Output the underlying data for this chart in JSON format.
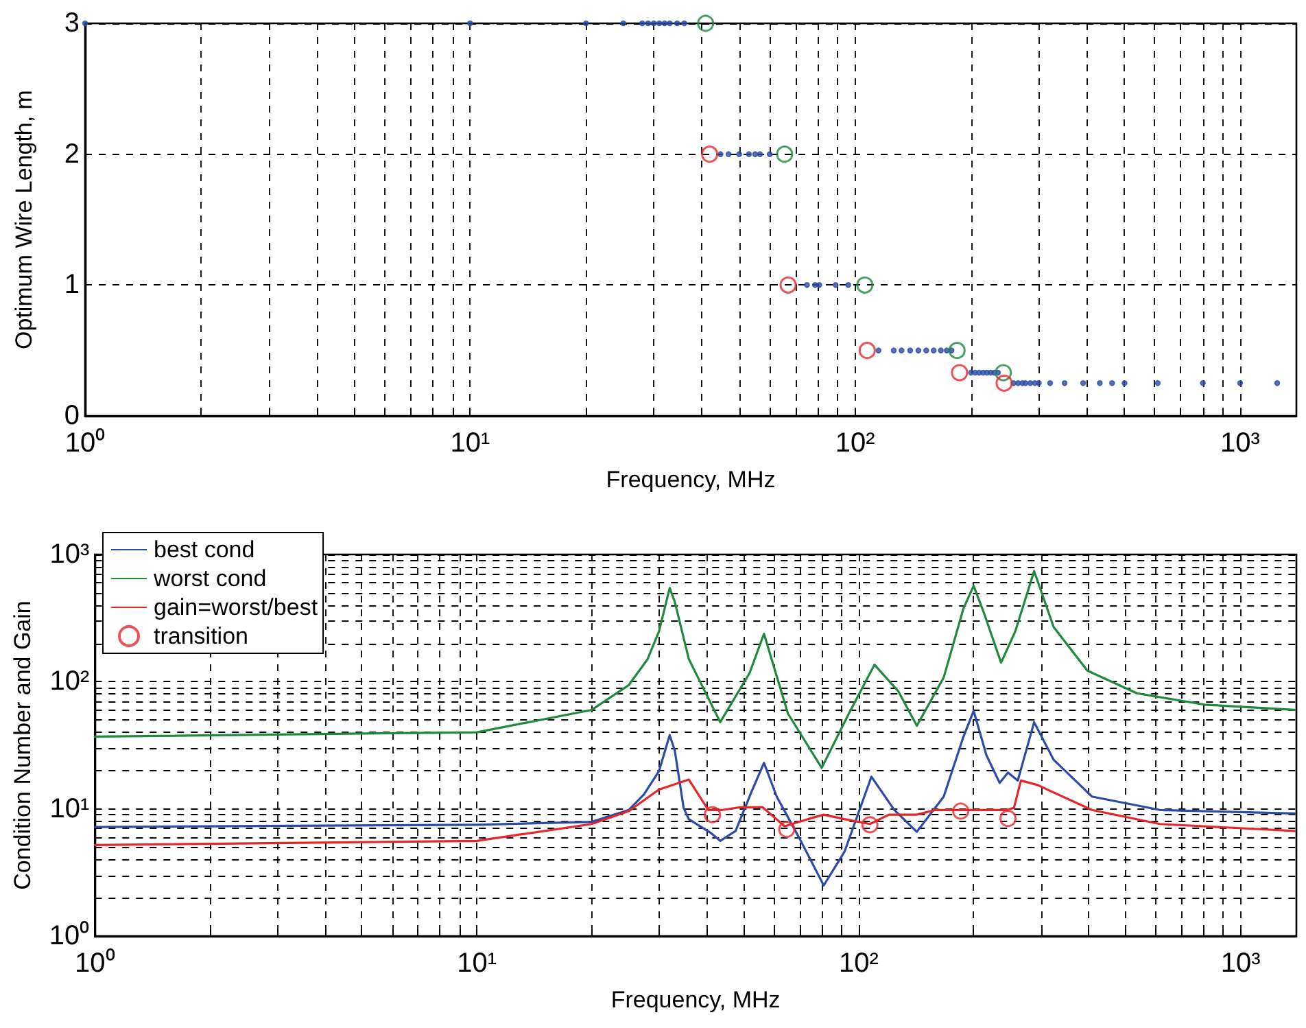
{
  "chart_data": [
    {
      "type": "scatter",
      "xlabel": "Frequency, MHz",
      "ylabel": "Optimum Wire Length, m",
      "log": "x",
      "grid": true,
      "legend": false,
      "marker": "circle",
      "xlim": [
        1,
        1400
      ],
      "ylim": [
        0,
        3
      ],
      "yticks": [
        0,
        1,
        2,
        3
      ],
      "xticks": [
        {
          "value": 1,
          "label": "10⁰"
        },
        {
          "value": 2,
          "label": null
        },
        {
          "value": 3,
          "label": null
        },
        {
          "value": 4,
          "label": null
        },
        {
          "value": 5,
          "label": null
        },
        {
          "value": 6,
          "label": null
        },
        {
          "value": 7,
          "label": null
        },
        {
          "value": 8,
          "label": null
        },
        {
          "value": 9,
          "label": null
        },
        {
          "value": 10,
          "label": "10¹"
        },
        {
          "value": 20,
          "label": null
        },
        {
          "value": 30,
          "label": null
        },
        {
          "value": 40,
          "label": null
        },
        {
          "value": 50,
          "label": null
        },
        {
          "value": 60,
          "label": null
        },
        {
          "value": 70,
          "label": null
        },
        {
          "value": 80,
          "label": null
        },
        {
          "value": 90,
          "label": null
        },
        {
          "value": 100,
          "label": "10²"
        },
        {
          "value": 200,
          "label": null
        },
        {
          "value": 300,
          "label": null
        },
        {
          "value": 400,
          "label": null
        },
        {
          "value": 500,
          "label": null
        },
        {
          "value": 600,
          "label": null
        },
        {
          "value": 700,
          "label": null
        },
        {
          "value": 800,
          "label": null
        },
        {
          "value": 900,
          "label": null
        },
        {
          "value": 1000,
          "label": "10³"
        }
      ],
      "series": [
        {
          "color": "#2b4ba8",
          "x": [
            1,
            10,
            20,
            25,
            28,
            29,
            30,
            31,
            32,
            33,
            34.5,
            36,
            44.7,
            46.9,
            50,
            53,
            55,
            56.6,
            60,
            75,
            78.7,
            80.7,
            89,
            96,
            115,
            126,
            132,
            139,
            146,
            153,
            160,
            167,
            173,
            178,
            195,
            200,
            205,
            210,
            215,
            220,
            225,
            230,
            235,
            258,
            265,
            272,
            277,
            285,
            293,
            300,
            321,
            350,
            391,
            432,
            465,
            501,
            611,
            800,
            1000,
            1248
          ],
          "values": [
            3,
            3,
            3,
            3,
            3,
            3,
            3,
            3,
            3,
            3,
            3,
            3,
            2,
            2,
            2,
            2,
            2,
            2,
            2,
            1,
            1,
            1,
            1,
            1,
            0.5,
            0.5,
            0.5,
            0.5,
            0.5,
            0.5,
            0.5,
            0.5,
            0.5,
            0.5,
            null,
            0.33,
            0.33,
            0.33,
            0.33,
            0.33,
            0.33,
            0.33,
            0.33,
            0.25,
            0.25,
            0.25,
            0.25,
            0.25,
            0.25,
            0.25,
            0.25,
            0.25,
            0.25,
            0.25,
            0.25,
            0.25,
            0.25,
            0.25,
            0.25,
            0.25
          ]
        },
        {
          "color": "#1e8a3c",
          "x": [
            40.9,
            65.6,
            106,
            184,
            242.6
          ],
          "values": [
            3,
            2,
            1,
            0.5,
            0.33
          ]
        },
        {
          "color": "#e8262a",
          "x": [
            41.9,
            67,
            107.5,
            186.7,
            243.8
          ],
          "values": [
            2,
            1,
            0.5,
            0.33,
            0.25
          ]
        }
      ]
    },
    {
      "type": "line",
      "xlabel": "Frequency, MHz",
      "ylabel": "Condition Number and Gain",
      "log": "xy",
      "grid": true,
      "legend": "top left",
      "marker": "none",
      "line_style": "solid",
      "xlim": [
        1,
        1400
      ],
      "ylim": [
        1,
        1000
      ],
      "xticks": [
        {
          "value": 1,
          "label": "10⁰"
        },
        {
          "value": 2,
          "label": null
        },
        {
          "value": 3,
          "label": null
        },
        {
          "value": 4,
          "label": null
        },
        {
          "value": 5,
          "label": null
        },
        {
          "value": 6,
          "label": null
        },
        {
          "value": 7,
          "label": null
        },
        {
          "value": 8,
          "label": null
        },
        {
          "value": 9,
          "label": null
        },
        {
          "value": 10,
          "label": "10¹"
        },
        {
          "value": 20,
          "label": null
        },
        {
          "value": 30,
          "label": null
        },
        {
          "value": 40,
          "label": null
        },
        {
          "value": 50,
          "label": null
        },
        {
          "value": 60,
          "label": null
        },
        {
          "value": 70,
          "label": null
        },
        {
          "value": 80,
          "label": null
        },
        {
          "value": 90,
          "label": null
        },
        {
          "value": 100,
          "label": "10²"
        },
        {
          "value": 200,
          "label": null
        },
        {
          "value": 300,
          "label": null
        },
        {
          "value": 400,
          "label": null
        },
        {
          "value": 500,
          "label": null
        },
        {
          "value": 600,
          "label": null
        },
        {
          "value": 700,
          "label": null
        },
        {
          "value": 800,
          "label": null
        },
        {
          "value": 900,
          "label": null
        },
        {
          "value": 1000,
          "label": "10³"
        }
      ],
      "yticks": [
        {
          "value": 1,
          "label": "10⁰"
        },
        {
          "value": 2,
          "label": null
        },
        {
          "value": 3,
          "label": null
        },
        {
          "value": 4,
          "label": null
        },
        {
          "value": 5,
          "label": null
        },
        {
          "value": 6,
          "label": null
        },
        {
          "value": 7,
          "label": null
        },
        {
          "value": 8,
          "label": null
        },
        {
          "value": 9,
          "label": null
        },
        {
          "value": 10,
          "label": "10¹"
        },
        {
          "value": 20,
          "label": null
        },
        {
          "value": 30,
          "label": null
        },
        {
          "value": 40,
          "label": null
        },
        {
          "value": 50,
          "label": null
        },
        {
          "value": 60,
          "label": null
        },
        {
          "value": 70,
          "label": null
        },
        {
          "value": 80,
          "label": null
        },
        {
          "value": 90,
          "label": null
        },
        {
          "value": 100,
          "label": "10²"
        },
        {
          "value": 200,
          "label": null
        },
        {
          "value": 300,
          "label": null
        },
        {
          "value": 400,
          "label": null
        },
        {
          "value": 500,
          "label": null
        },
        {
          "value": 600,
          "label": null
        },
        {
          "value": 700,
          "label": null
        },
        {
          "value": 800,
          "label": null
        },
        {
          "value": 900,
          "label": null
        },
        {
          "value": 1000,
          "label": "10³"
        }
      ],
      "series": [
        {
          "name": "best cond",
          "color": "#2b4ba8",
          "x": [
            1,
            10,
            20,
            25,
            27.4,
            30,
            32,
            33,
            34.8,
            35.9,
            40.9,
            43.4,
            47.6,
            52.4,
            56.5,
            61,
            69.9,
            81,
            91.8,
            108,
            124,
            142,
            167,
            188,
            200,
            216,
            234,
            246,
            261,
            288,
            324,
            408,
            615,
            1385
          ],
          "values": [
            7.2,
            7.5,
            7.9,
            9.8,
            13,
            19.8,
            38,
            28.7,
            10.2,
            8.3,
            6.5,
            5.6,
            6.7,
            13.6,
            23,
            12.5,
            5.9,
            2.5,
            4.6,
            17.9,
            9.8,
            6.6,
            12.5,
            36.8,
            59,
            26.4,
            16,
            19.3,
            16.7,
            48,
            24.3,
            12.5,
            9.8,
            9.2
          ]
        },
        {
          "name": "worst cond",
          "color": "#1e8a3c",
          "x": [
            1,
            10,
            20,
            25,
            28,
            30,
            32,
            33,
            35.9,
            43.4,
            51.8,
            56.5,
            65.3,
            80,
            94.2,
            110,
            127,
            142,
            167,
            188,
            200,
            213,
            236,
            257,
            288,
            324,
            397,
            535,
            804,
            1385
          ],
          "values": [
            37,
            40,
            60,
            94,
            150,
            248,
            545,
            425,
            151,
            48,
            117,
            238,
            56,
            21,
            56,
            136,
            84,
            45,
            108,
            375,
            567,
            345,
            141,
            248,
            740,
            269,
            122,
            81,
            66,
            60
          ]
        },
        {
          "name": "gain=worst/best",
          "color": "#e8262a",
          "x": [
            1,
            10,
            20,
            25,
            30,
            35.9,
            40.4,
            44,
            49,
            56,
            64,
            73.6,
            81,
            91.8,
            107,
            120,
            142,
            159,
            185,
            245,
            255,
            266,
            294,
            408,
            615,
            1385
          ],
          "values": [
            5.2,
            5.6,
            7.6,
            9.6,
            14.2,
            17,
            9.8,
            9.8,
            10.3,
            10.3,
            7.3,
            8.3,
            9,
            8.3,
            7.6,
            9,
            9,
            9.8,
            9.8,
            9.8,
            10.2,
            16.7,
            15.4,
            9.8,
            7.6,
            6.7
          ]
        },
        {
          "name": "transition",
          "type": "scatter",
          "marker": "circle",
          "color": "#e8262a",
          "x": [
            41.4,
            64.8,
            107,
            185,
            246
          ],
          "values": [
            9,
            6.9,
            7.5,
            9.6,
            8.4
          ]
        }
      ]
    }
  ]
}
